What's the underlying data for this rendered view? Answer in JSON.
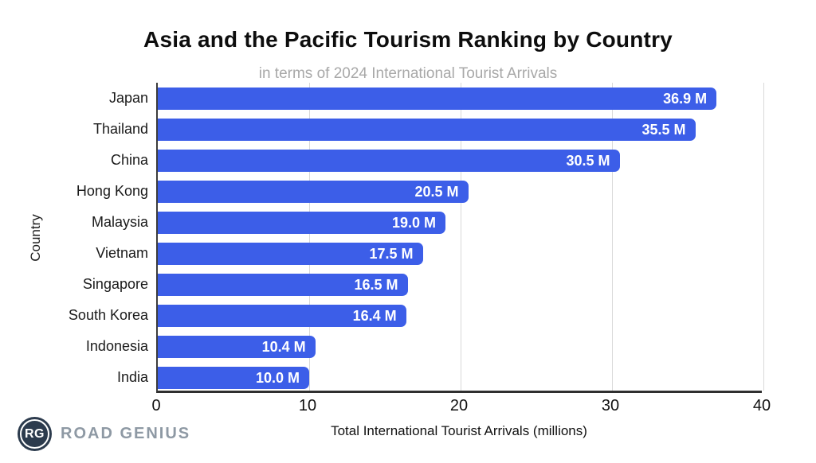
{
  "title": "Asia and the Pacific Tourism Ranking by Country",
  "subtitle": "in terms of 2024 International Tourist Arrivals",
  "chart_data": {
    "type": "bar",
    "orientation": "horizontal",
    "categories": [
      "Japan",
      "Thailand",
      "China",
      "Hong Kong",
      "Malaysia",
      "Vietnam",
      "Singapore",
      "South Korea",
      "Indonesia",
      "India"
    ],
    "values": [
      36.9,
      35.5,
      30.5,
      20.5,
      19.0,
      17.5,
      16.5,
      16.4,
      10.4,
      10.0
    ],
    "value_labels": [
      "36.9 M",
      "35.5 M",
      "30.5 M",
      "20.5 M",
      "19.0 M",
      "17.5 M",
      "16.5 M",
      "16.4 M",
      "10.4 M",
      "10.0 M"
    ],
    "title": "Asia and the Pacific Tourism Ranking by Country",
    "subtitle": "in terms of 2024 International Tourist Arrivals",
    "xlabel": "Total International Tourist Arrivals (millions)",
    "ylabel": "Country",
    "xlim": [
      0,
      40
    ],
    "xticks": [
      0,
      10,
      20,
      30,
      40
    ],
    "grid": true,
    "legend": false
  },
  "branding": {
    "logo_initials": "RG",
    "logo_text": "ROAD GENIUS"
  },
  "colors": {
    "bar": "#3c5ee8",
    "bar_value_text": "#ffffff",
    "subtitle_text": "#a8a8a8",
    "gridline": "#d9d9d9",
    "axis_line": "#3c3c3c",
    "logo_circle": "#2c3b4d",
    "logo_text": "#8e99a4"
  }
}
